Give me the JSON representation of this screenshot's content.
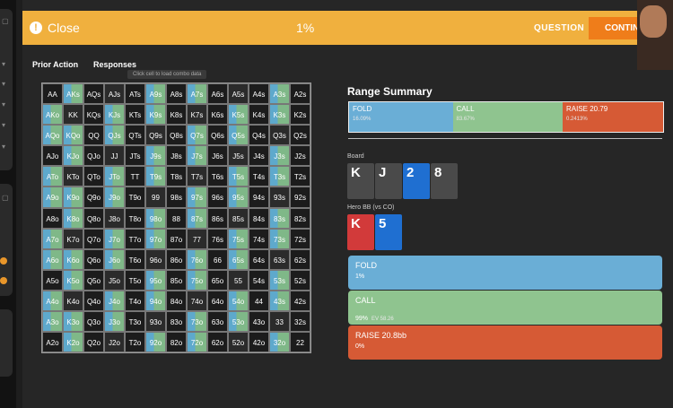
{
  "topbar": {
    "close_label": "Close",
    "progress": "1%",
    "question_label": "QUESTION",
    "continue_label": "CONTINUE"
  },
  "tabs": {
    "prior_action": "Prior Action",
    "responses": "Responses"
  },
  "tooltip": "Click cell to load combo data",
  "hand_grid": [
    "AA",
    "AKs",
    "AQs",
    "AJs",
    "ATs",
    "A9s",
    "A8s",
    "A7s",
    "A6s",
    "A5s",
    "A4s",
    "A3s",
    "A2s",
    "AKo",
    "KK",
    "KQs",
    "KJs",
    "KTs",
    "K9s",
    "K8s",
    "K7s",
    "K6s",
    "K5s",
    "K4s",
    "K3s",
    "K2s",
    "AQo",
    "KQo",
    "QQ",
    "QJs",
    "QTs",
    "Q9s",
    "Q8s",
    "Q7s",
    "Q6s",
    "Q5s",
    "Q4s",
    "Q3s",
    "Q2s",
    "AJo",
    "KJo",
    "QJo",
    "JJ",
    "JTs",
    "J9s",
    "J8s",
    "J7s",
    "J6s",
    "J5s",
    "J4s",
    "J3s",
    "J2s",
    "ATo",
    "KTo",
    "QTo",
    "JTo",
    "TT",
    "T9s",
    "T8s",
    "T7s",
    "T6s",
    "T5s",
    "T4s",
    "T3s",
    "T2s",
    "A9o",
    "K9o",
    "Q9o",
    "J9o",
    "T9o",
    "99",
    "98s",
    "97s",
    "96s",
    "95s",
    "94s",
    "93s",
    "92s",
    "A8o",
    "K8o",
    "Q8o",
    "J8o",
    "T8o",
    "98o",
    "88",
    "87s",
    "86s",
    "85s",
    "84s",
    "83s",
    "82s",
    "A7o",
    "K7o",
    "Q7o",
    "J7o",
    "T7o",
    "97o",
    "87o",
    "77",
    "76s",
    "75s",
    "74s",
    "73s",
    "72s",
    "A6o",
    "K6o",
    "Q6o",
    "J6o",
    "T6o",
    "96o",
    "86o",
    "76o",
    "66",
    "65s",
    "64s",
    "63s",
    "62s",
    "A5o",
    "K5o",
    "Q5o",
    "J5o",
    "T5o",
    "95o",
    "85o",
    "75o",
    "65o",
    "55",
    "54s",
    "53s",
    "52s",
    "A4o",
    "K4o",
    "Q4o",
    "J4o",
    "T4o",
    "94o",
    "84o",
    "74o",
    "64o",
    "54o",
    "44",
    "43s",
    "42s",
    "A3o",
    "K3o",
    "Q3o",
    "J3o",
    "T3o",
    "93o",
    "83o",
    "73o",
    "63o",
    "53o",
    "43o",
    "33",
    "32s",
    "A2o",
    "K2o",
    "Q2o",
    "J2o",
    "T2o",
    "92o",
    "82o",
    "72o",
    "62o",
    "52o",
    "42o",
    "32o",
    "22"
  ],
  "range_summary": {
    "title": "Range Summary",
    "segments": [
      {
        "label": "FOLD",
        "value": "16.09%",
        "color": "#6aaed6",
        "share": 0.33
      },
      {
        "label": "CALL",
        "value": "83.67%",
        "color": "#8fc48f",
        "share": 0.35
      },
      {
        "label": "RAISE 20.79",
        "value": "0.2413%",
        "color": "#d65a35",
        "share": 0.32
      }
    ]
  },
  "board": {
    "label": "Board",
    "cards": [
      {
        "rank": "K",
        "color": "#4a4a4a"
      },
      {
        "rank": "J",
        "color": "#4a4a4a"
      },
      {
        "rank": "2",
        "color": "#1f6fd1"
      },
      {
        "rank": "8",
        "color": "#4a4a4a"
      }
    ]
  },
  "hero": {
    "label": "Hero BB (vs CO)",
    "cards": [
      {
        "rank": "K",
        "color": "#d23a3a"
      },
      {
        "rank": "5",
        "color": "#1f6fd1"
      }
    ]
  },
  "actions": [
    {
      "label": "FOLD",
      "value": "1%",
      "color": "#6aaed6"
    },
    {
      "label": "CALL",
      "value": "99%",
      "extra": "EV 58.26",
      "color": "#8fc48f"
    },
    {
      "label": "RAISE 20.8bb",
      "value": "0%",
      "color": "#d65a35"
    }
  ]
}
